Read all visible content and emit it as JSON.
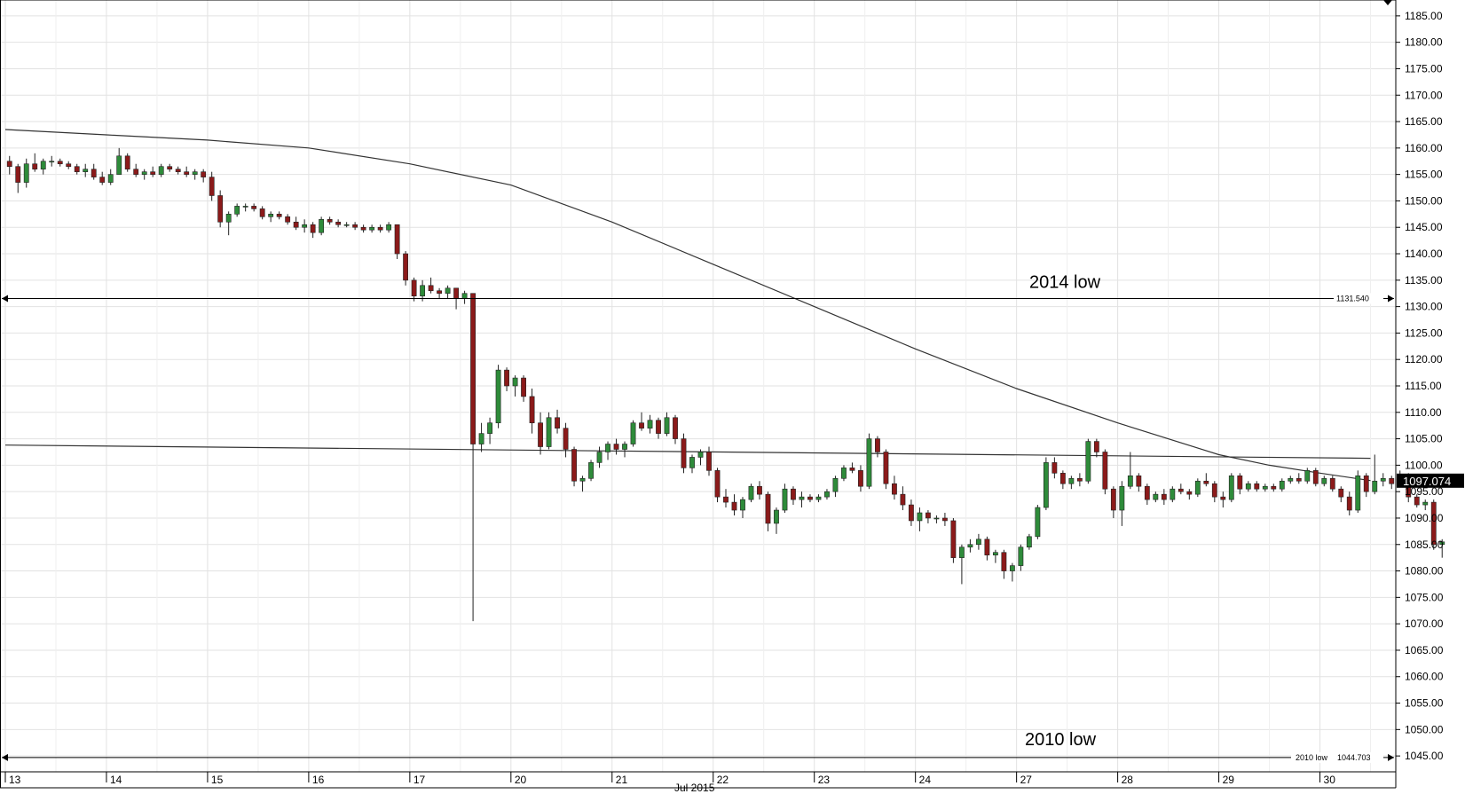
{
  "chart_data": {
    "type": "candlestick",
    "title": "",
    "xlabel": "Jul 2015",
    "ylabel": "",
    "ylim": [
      1042,
      1188
    ],
    "y_ticks": [
      "1045.00",
      "1050.00",
      "1055.00",
      "1060.00",
      "1065.00",
      "1070.00",
      "1075.00",
      "1080.00",
      "1085.00",
      "1090.00",
      "1095.00",
      "1100.00",
      "1105.00",
      "1110.00",
      "1115.00",
      "1120.00",
      "1125.00",
      "1130.00",
      "1135.00",
      "1140.00",
      "1145.00",
      "1150.00",
      "1155.00",
      "1160.00",
      "1165.00",
      "1170.00",
      "1175.00",
      "1180.00",
      "1185.00"
    ],
    "day_labels": [
      {
        "label": "13",
        "t": 0
      },
      {
        "label": "14",
        "t": 24
      },
      {
        "label": "15",
        "t": 48
      },
      {
        "label": "16",
        "t": 72
      },
      {
        "label": "17",
        "t": 96
      },
      {
        "label": "20",
        "t": 120
      },
      {
        "label": "21",
        "t": 144
      },
      {
        "label": "22",
        "t": 168
      },
      {
        "label": "23",
        "t": 192
      },
      {
        "label": "24",
        "t": 216
      },
      {
        "label": "27",
        "t": 240
      },
      {
        "label": "28",
        "t": 264
      },
      {
        "label": "29",
        "t": 288
      },
      {
        "label": "30",
        "t": 312
      }
    ],
    "bar_hours": 2,
    "candles": [
      [
        1157.5,
        1158.5,
        1155.0,
        1156.5
      ],
      [
        1156.5,
        1157.0,
        1151.5,
        1153.5
      ],
      [
        1153.5,
        1158.0,
        1152.5,
        1157.0
      ],
      [
        1157.0,
        1159.0,
        1155.5,
        1156.0
      ],
      [
        1156.0,
        1158.0,
        1155.0,
        1157.5
      ],
      [
        1157.5,
        1158.5,
        1156.5,
        1157.5
      ],
      [
        1157.5,
        1158.0,
        1156.5,
        1157.0
      ],
      [
        1157.0,
        1157.5,
        1156.0,
        1156.5
      ],
      [
        1156.5,
        1157.0,
        1155.0,
        1155.5
      ],
      [
        1155.5,
        1157.0,
        1154.5,
        1156.0
      ],
      [
        1156.0,
        1157.0,
        1154.0,
        1154.5
      ],
      [
        1154.5,
        1155.5,
        1153.0,
        1153.5
      ],
      [
        1153.5,
        1156.0,
        1153.0,
        1155.0
      ],
      [
        1155.0,
        1160.0,
        1155.0,
        1158.5
      ],
      [
        1158.5,
        1159.0,
        1155.5,
        1156.0
      ],
      [
        1156.0,
        1157.0,
        1154.5,
        1155.0
      ],
      [
        1155.0,
        1156.0,
        1154.0,
        1155.5
      ],
      [
        1155.5,
        1156.5,
        1154.5,
        1155.0
      ],
      [
        1155.0,
        1157.0,
        1154.5,
        1156.5
      ],
      [
        1156.5,
        1157.0,
        1155.5,
        1156.0
      ],
      [
        1156.0,
        1156.5,
        1155.0,
        1155.5
      ],
      [
        1155.5,
        1156.5,
        1154.5,
        1155.0
      ],
      [
        1155.0,
        1156.0,
        1154.0,
        1155.5
      ],
      [
        1155.5,
        1156.0,
        1153.5,
        1154.5
      ],
      [
        1154.5,
        1155.5,
        1150.0,
        1151.0
      ],
      [
        1151.0,
        1152.0,
        1145.0,
        1146.0
      ],
      [
        1146.0,
        1148.0,
        1143.5,
        1147.5
      ],
      [
        1147.5,
        1149.5,
        1147.0,
        1149.0
      ],
      [
        1149.0,
        1149.5,
        1148.0,
        1149.0
      ],
      [
        1149.0,
        1149.5,
        1148.0,
        1148.5
      ],
      [
        1148.5,
        1149.0,
        1146.5,
        1147.0
      ],
      [
        1147.0,
        1148.0,
        1146.0,
        1147.5
      ],
      [
        1147.5,
        1148.0,
        1146.5,
        1147.0
      ],
      [
        1147.0,
        1147.5,
        1145.5,
        1146.0
      ],
      [
        1146.0,
        1147.0,
        1144.5,
        1145.0
      ],
      [
        1145.0,
        1146.5,
        1144.0,
        1145.5
      ],
      [
        1145.5,
        1146.0,
        1143.0,
        1144.0
      ],
      [
        1144.0,
        1147.0,
        1143.5,
        1146.5
      ],
      [
        1146.5,
        1147.0,
        1145.5,
        1146.0
      ],
      [
        1146.0,
        1146.5,
        1145.0,
        1145.5
      ],
      [
        1145.5,
        1146.0,
        1145.0,
        1145.5
      ],
      [
        1145.5,
        1146.0,
        1144.5,
        1145.0
      ],
      [
        1145.0,
        1145.5,
        1144.0,
        1144.5
      ],
      [
        1144.5,
        1145.5,
        1144.0,
        1145.0
      ],
      [
        1145.0,
        1145.5,
        1144.0,
        1144.5
      ],
      [
        1144.5,
        1146.0,
        1144.0,
        1145.5
      ],
      [
        1145.5,
        1145.5,
        1139.0,
        1140.0
      ],
      [
        1140.0,
        1140.5,
        1134.0,
        1135.0
      ],
      [
        1135.0,
        1135.5,
        1131.0,
        1132.0
      ],
      [
        1132.0,
        1135.0,
        1131.0,
        1134.0
      ],
      [
        1134.0,
        1135.5,
        1132.5,
        1133.0
      ],
      [
        1133.0,
        1133.5,
        1131.5,
        1132.5
      ],
      [
        1132.5,
        1134.0,
        1131.5,
        1133.5
      ],
      [
        1133.5,
        1133.5,
        1129.5,
        1131.5
      ],
      [
        1131.5,
        1133.0,
        1130.5,
        1132.5
      ],
      [
        1132.5,
        1132.5,
        1070.5,
        1104.0
      ],
      [
        1104.0,
        1108.0,
        1102.5,
        1106.0
      ],
      [
        1106.0,
        1109.0,
        1104.0,
        1108.0
      ],
      [
        1108.0,
        1119.0,
        1107.0,
        1118.0
      ],
      [
        1118.0,
        1118.5,
        1114.0,
        1115.0
      ],
      [
        1115.0,
        1117.0,
        1113.0,
        1116.5
      ],
      [
        1116.5,
        1117.0,
        1112.0,
        1113.0
      ],
      [
        1113.0,
        1114.5,
        1106.0,
        1108.0
      ],
      [
        1108.0,
        1110.0,
        1102.0,
        1103.5
      ],
      [
        1103.5,
        1110.0,
        1103.0,
        1109.0
      ],
      [
        1109.0,
        1110.5,
        1106.0,
        1107.0
      ],
      [
        1107.0,
        1108.0,
        1101.5,
        1103.0
      ],
      [
        1103.0,
        1103.5,
        1096.0,
        1097.0
      ],
      [
        1097.0,
        1098.0,
        1095.0,
        1097.5
      ],
      [
        1097.5,
        1101.0,
        1097.0,
        1100.5
      ],
      [
        1100.5,
        1103.5,
        1099.5,
        1102.5
      ],
      [
        1102.5,
        1104.5,
        1101.0,
        1104.0
      ],
      [
        1104.0,
        1105.0,
        1102.0,
        1103.0
      ],
      [
        1103.0,
        1104.5,
        1101.5,
        1104.0
      ],
      [
        1104.0,
        1108.5,
        1103.5,
        1108.0
      ],
      [
        1108.0,
        1110.0,
        1106.5,
        1107.0
      ],
      [
        1107.0,
        1109.5,
        1106.0,
        1108.5
      ],
      [
        1108.5,
        1109.0,
        1105.0,
        1106.0
      ],
      [
        1106.0,
        1110.0,
        1105.5,
        1109.0
      ],
      [
        1109.0,
        1109.5,
        1104.0,
        1105.0
      ],
      [
        1105.0,
        1106.0,
        1098.5,
        1099.5
      ],
      [
        1099.5,
        1102.0,
        1098.5,
        1101.5
      ],
      [
        1101.5,
        1103.0,
        1100.0,
        1102.5
      ],
      [
        1102.5,
        1103.5,
        1098.0,
        1099.0
      ],
      [
        1099.0,
        1099.5,
        1093.0,
        1094.0
      ],
      [
        1094.0,
        1095.5,
        1092.0,
        1093.0
      ],
      [
        1093.0,
        1094.5,
        1090.5,
        1091.5
      ],
      [
        1091.5,
        1094.0,
        1090.0,
        1093.5
      ],
      [
        1093.5,
        1096.5,
        1093.0,
        1096.0
      ],
      [
        1096.0,
        1097.0,
        1093.5,
        1094.5
      ],
      [
        1094.5,
        1095.0,
        1087.5,
        1089.0
      ],
      [
        1089.0,
        1092.0,
        1087.0,
        1091.5
      ],
      [
        1091.5,
        1096.5,
        1091.0,
        1095.5
      ],
      [
        1095.5,
        1096.0,
        1092.5,
        1093.5
      ],
      [
        1093.5,
        1095.0,
        1092.0,
        1094.0
      ],
      [
        1094.0,
        1094.5,
        1093.0,
        1093.5
      ],
      [
        1093.5,
        1094.5,
        1093.0,
        1094.0
      ],
      [
        1094.0,
        1095.5,
        1093.5,
        1095.0
      ],
      [
        1095.0,
        1098.0,
        1094.0,
        1097.5
      ],
      [
        1097.5,
        1100.0,
        1097.0,
        1099.5
      ],
      [
        1099.5,
        1100.5,
        1098.5,
        1099.0
      ],
      [
        1099.0,
        1100.0,
        1095.0,
        1096.0
      ],
      [
        1096.0,
        1106.0,
        1095.5,
        1105.0
      ],
      [
        1105.0,
        1105.5,
        1101.5,
        1102.5
      ],
      [
        1102.5,
        1103.0,
        1095.5,
        1096.5
      ],
      [
        1096.5,
        1098.0,
        1093.5,
        1094.5
      ],
      [
        1094.5,
        1096.0,
        1091.5,
        1092.5
      ],
      [
        1092.5,
        1093.5,
        1088.5,
        1089.5
      ],
      [
        1089.5,
        1092.0,
        1087.5,
        1091.0
      ],
      [
        1091.0,
        1091.5,
        1089.0,
        1090.0
      ],
      [
        1090.0,
        1090.5,
        1089.0,
        1090.0
      ],
      [
        1090.0,
        1091.0,
        1088.5,
        1089.5
      ],
      [
        1089.5,
        1090.0,
        1081.5,
        1082.5
      ],
      [
        1082.5,
        1085.0,
        1077.5,
        1084.5
      ],
      [
        1084.5,
        1086.0,
        1083.5,
        1085.0
      ],
      [
        1085.0,
        1087.0,
        1084.0,
        1086.0
      ],
      [
        1086.0,
        1086.5,
        1082.0,
        1083.0
      ],
      [
        1083.0,
        1084.0,
        1081.5,
        1083.5
      ],
      [
        1083.5,
        1084.0,
        1078.5,
        1080.0
      ],
      [
        1080.0,
        1081.5,
        1078.0,
        1081.0
      ],
      [
        1081.0,
        1085.0,
        1080.0,
        1084.5
      ],
      [
        1084.5,
        1087.0,
        1084.0,
        1086.5
      ],
      [
        1086.5,
        1092.5,
        1086.0,
        1092.0
      ],
      [
        1092.0,
        1101.5,
        1091.5,
        1100.5
      ],
      [
        1100.5,
        1101.5,
        1097.5,
        1098.5
      ],
      [
        1098.5,
        1099.0,
        1095.5,
        1096.5
      ],
      [
        1096.5,
        1098.0,
        1095.5,
        1097.5
      ],
      [
        1097.5,
        1098.5,
        1096.0,
        1097.0
      ],
      [
        1097.0,
        1105.0,
        1096.5,
        1104.5
      ],
      [
        1104.5,
        1105.0,
        1101.5,
        1102.5
      ],
      [
        1102.5,
        1103.0,
        1094.5,
        1095.5
      ],
      [
        1095.5,
        1096.0,
        1090.0,
        1091.5
      ],
      [
        1091.5,
        1097.0,
        1088.5,
        1096.0
      ],
      [
        1096.0,
        1102.5,
        1095.5,
        1098.0
      ],
      [
        1098.0,
        1098.5,
        1095.0,
        1096.0
      ],
      [
        1096.0,
        1096.5,
        1092.5,
        1093.5
      ],
      [
        1093.5,
        1095.0,
        1093.0,
        1094.5
      ],
      [
        1094.5,
        1095.5,
        1092.5,
        1093.5
      ],
      [
        1093.5,
        1096.0,
        1093.0,
        1095.5
      ],
      [
        1095.5,
        1096.5,
        1094.5,
        1095.0
      ],
      [
        1095.0,
        1095.5,
        1093.5,
        1094.5
      ],
      [
        1094.5,
        1097.5,
        1094.0,
        1097.0
      ],
      [
        1097.0,
        1098.5,
        1096.0,
        1096.5
      ],
      [
        1096.5,
        1097.0,
        1093.0,
        1094.0
      ],
      [
        1094.0,
        1095.0,
        1092.0,
        1093.5
      ],
      [
        1093.5,
        1098.5,
        1093.0,
        1098.0
      ],
      [
        1098.0,
        1098.5,
        1094.5,
        1095.5
      ],
      [
        1095.5,
        1097.0,
        1095.0,
        1096.5
      ],
      [
        1096.5,
        1097.0,
        1095.0,
        1095.5
      ],
      [
        1095.5,
        1096.5,
        1095.0,
        1096.0
      ],
      [
        1096.0,
        1096.5,
        1095.0,
        1095.5
      ],
      [
        1095.5,
        1097.5,
        1095.0,
        1097.0
      ],
      [
        1097.0,
        1098.0,
        1096.5,
        1097.5
      ],
      [
        1097.5,
        1098.5,
        1096.5,
        1097.0
      ],
      [
        1097.0,
        1099.5,
        1096.5,
        1099.0
      ],
      [
        1099.0,
        1099.5,
        1096.0,
        1096.5
      ],
      [
        1096.5,
        1098.0,
        1096.0,
        1097.5
      ],
      [
        1097.5,
        1098.0,
        1095.0,
        1095.5
      ],
      [
        1095.5,
        1096.0,
        1093.0,
        1094.0
      ],
      [
        1094.0,
        1095.0,
        1090.5,
        1091.5
      ],
      [
        1091.5,
        1099.0,
        1091.0,
        1098.0
      ],
      [
        1098.0,
        1098.5,
        1094.0,
        1095.0
      ],
      [
        1095.0,
        1102.0,
        1094.5,
        1097.0
      ],
      [
        1097.0,
        1098.5,
        1096.0,
        1097.5
      ],
      [
        1097.5,
        1098.0,
        1095.5,
        1096.5
      ],
      [
        1096.5,
        1099.0,
        1096.0,
        1098.0
      ],
      [
        1098.0,
        1098.5,
        1093.0,
        1094.0
      ],
      [
        1094.0,
        1094.5,
        1092.0,
        1092.5
      ],
      [
        1092.5,
        1093.5,
        1091.5,
        1093.0
      ],
      [
        1093.0,
        1093.5,
        1084.0,
        1085.0
      ],
      [
        1085.0,
        1086.0,
        1082.5,
        1085.5
      ]
    ],
    "series": [
      {
        "type": "line",
        "points": [
          [
            0,
            1163.5
          ],
          [
            24,
            1162.5
          ],
          [
            48,
            1161.5
          ],
          [
            72,
            1160.0
          ],
          [
            96,
            1157.0
          ],
          [
            120,
            1153.0
          ],
          [
            144,
            1146.0
          ],
          [
            168,
            1138.0
          ],
          [
            192,
            1130.0
          ],
          [
            216,
            1122.0
          ],
          [
            240,
            1114.5
          ],
          [
            264,
            1108.0
          ],
          [
            288,
            1102.0
          ],
          [
            300,
            1100.0
          ],
          [
            312,
            1098.5
          ],
          [
            324,
            1097.1
          ]
        ]
      },
      {
        "type": "line",
        "points": [
          [
            0,
            1103.8
          ],
          [
            324,
            1101.3
          ]
        ]
      }
    ],
    "annotations": [
      {
        "text": "2014 low",
        "value": 1131.54,
        "value_label": "1131.540"
      },
      {
        "text": "2010 low",
        "value": 1044.703,
        "value_label": "1044.703",
        "side_label": "2010 low"
      }
    ],
    "last_price": {
      "value": 1097.074,
      "label": "1097.074"
    },
    "grid": true
  }
}
